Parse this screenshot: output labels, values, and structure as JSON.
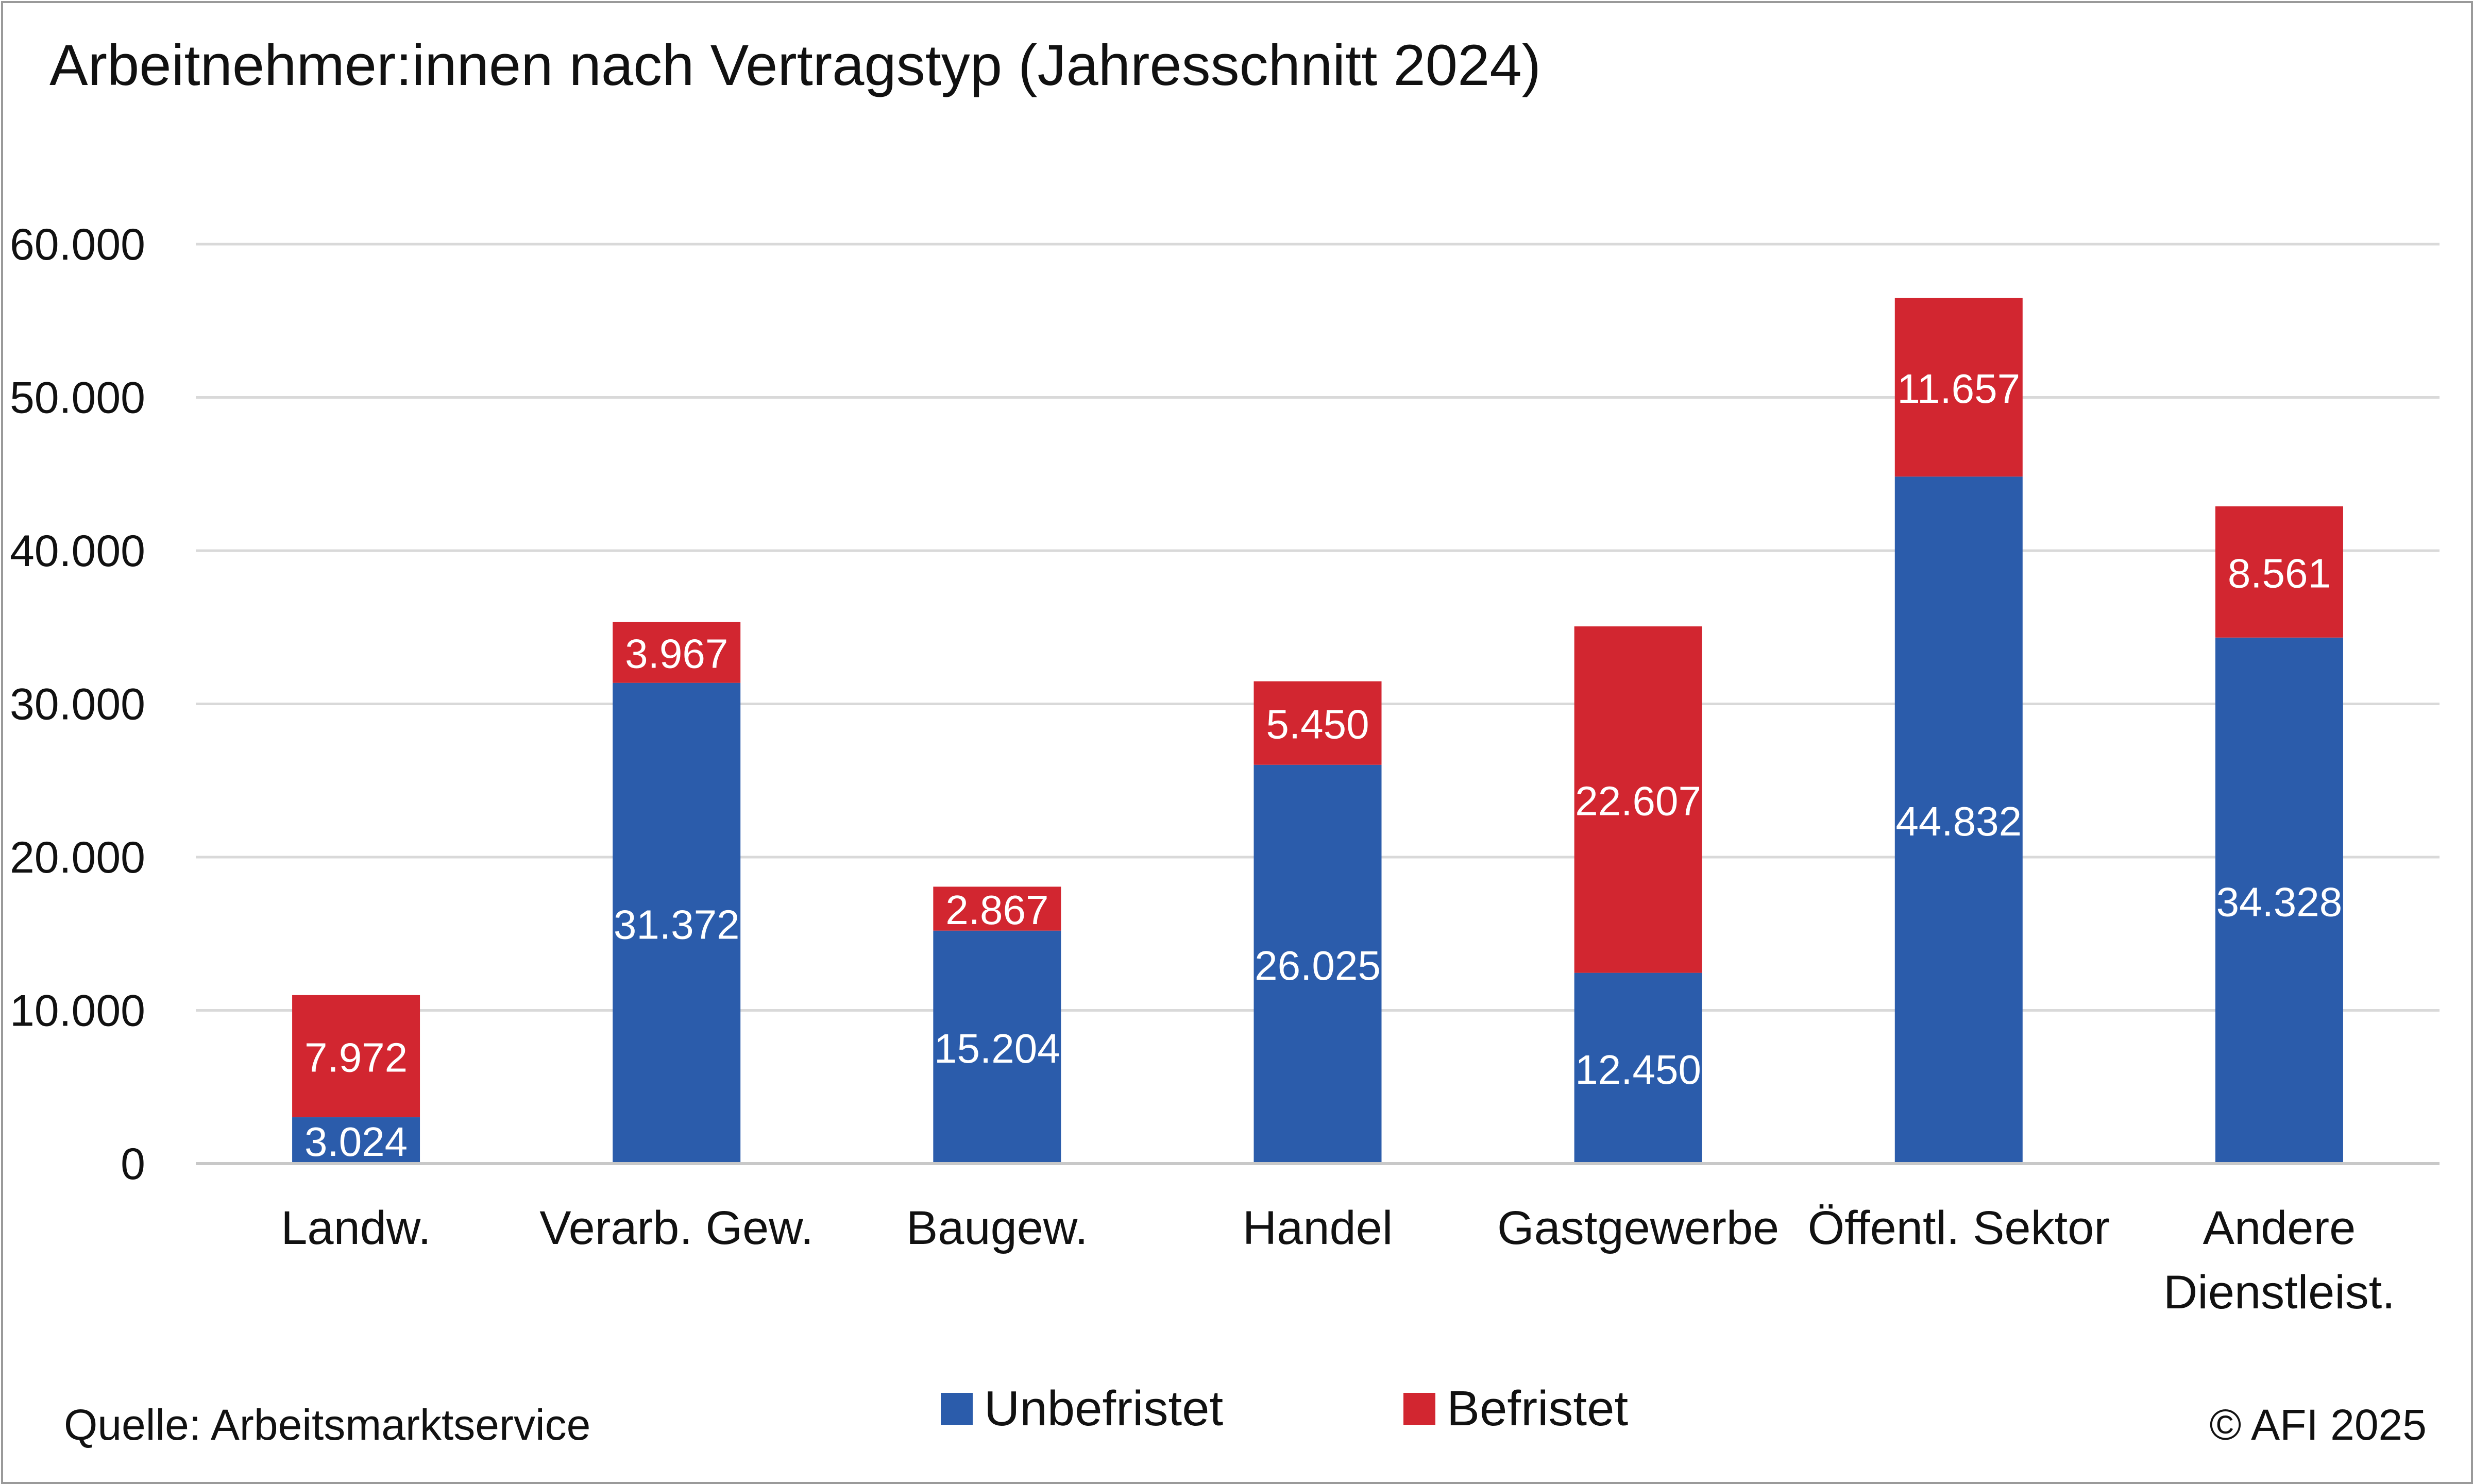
{
  "title": "Arbeitnehmer:innen nach Vertragstyp (Jahresschnitt 2024)",
  "source": "Quelle: Arbeitsmarktservice",
  "copyright": "© AFI 2025",
  "colors": {
    "unbefristet": "#2b5cab",
    "befristet": "#d22630",
    "grid": "#d9d9d9",
    "axis": "#c8c8c8",
    "text": "#111111",
    "label": "#ffffff"
  },
  "legend": {
    "unbefristet": "Unbefristet",
    "befristet": "Befristet"
  },
  "chart_data": {
    "type": "bar",
    "stacked": true,
    "title": "Arbeitnehmer:innen nach Vertragstyp (Jahresschnitt 2024)",
    "xlabel": "",
    "ylabel": "",
    "ylim": [
      0,
      60000
    ],
    "yticks": [
      0,
      10000,
      20000,
      30000,
      40000,
      50000,
      60000
    ],
    "ytick_labels": [
      "0",
      "10.000",
      "20.000",
      "30.000",
      "40.000",
      "50.000",
      "60.000"
    ],
    "grid": true,
    "legend_position": "bottom",
    "categories": [
      [
        "Landw."
      ],
      [
        "Verarb. Gew."
      ],
      [
        "Baugew."
      ],
      [
        "Handel"
      ],
      [
        "Gastgewerbe"
      ],
      [
        "Öffentl. Sektor"
      ],
      [
        "Andere",
        "Dienstleist."
      ]
    ],
    "series": [
      {
        "name": "Unbefristet",
        "values": [
          3024,
          31372,
          15204,
          26025,
          12450,
          44832,
          34328
        ],
        "labels": [
          "3.024",
          "31.372",
          "15.204",
          "26.025",
          "12.450",
          "44.832",
          "34.328"
        ]
      },
      {
        "name": "Befristet",
        "values": [
          7972,
          3967,
          2867,
          5450,
          22607,
          11657,
          8561
        ],
        "labels": [
          "7.972",
          "3.967",
          "2.867",
          "5.450",
          "22.607",
          "11.657",
          "8.561"
        ]
      }
    ]
  }
}
